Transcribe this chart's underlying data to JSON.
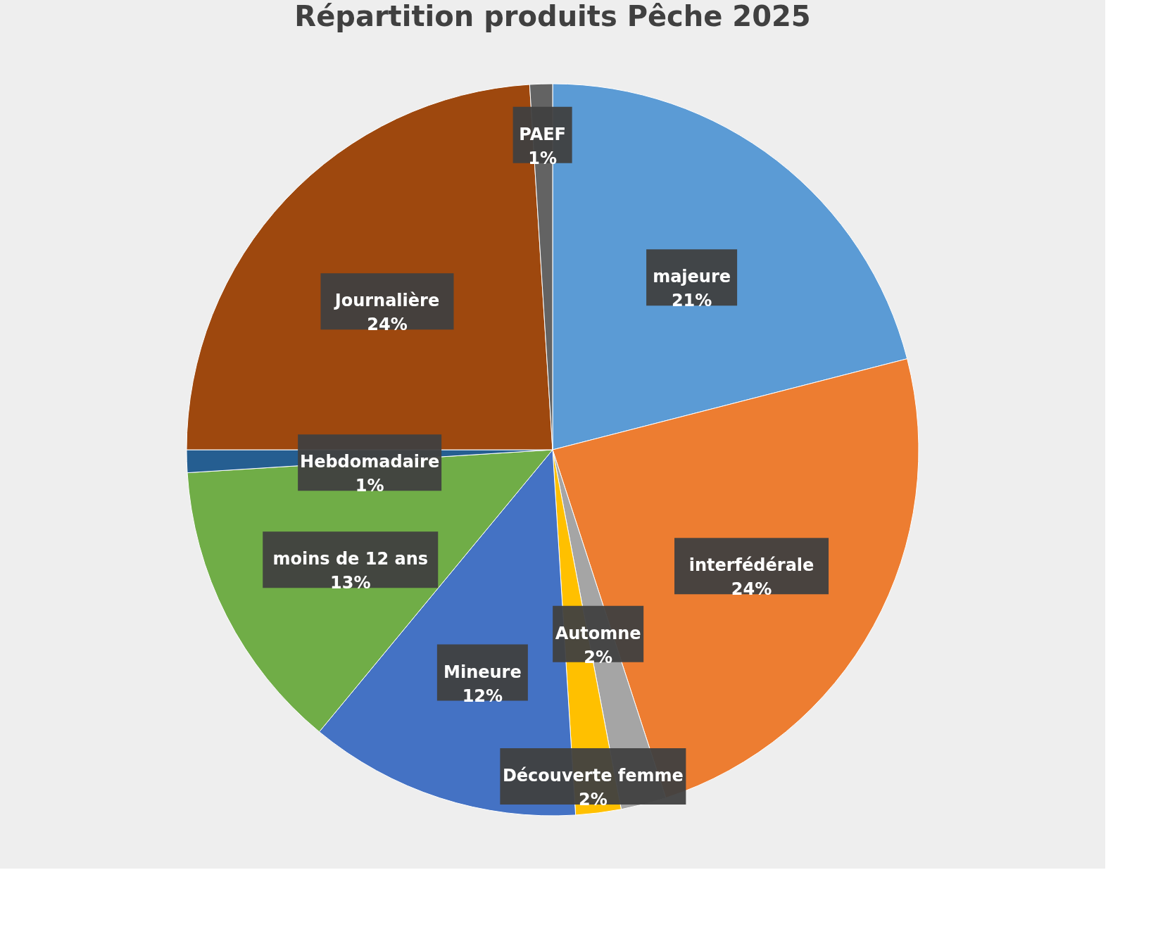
{
  "chart_data": {
    "type": "pie",
    "title": "Répartition produits Pêche 2025",
    "categories": [
      "majeure",
      "interfédérale",
      "Automne",
      "Découverte femme",
      "Mineure",
      "moins de 12 ans",
      "Hebdomadaire",
      "Journalière",
      "PAEF"
    ],
    "values": [
      21,
      24,
      2,
      2,
      12,
      13,
      1,
      24,
      1
    ],
    "value_labels": [
      "21%",
      "24%",
      "2%",
      "2%",
      "12%",
      "13%",
      "1%",
      "24%",
      "1%"
    ],
    "colors": [
      "#5b9bd5",
      "#ed7d31",
      "#a5a5a5",
      "#ffc000",
      "#4472c4",
      "#70ad47",
      "#255e91",
      "#9e480e",
      "#636363"
    ],
    "legend": false
  }
}
